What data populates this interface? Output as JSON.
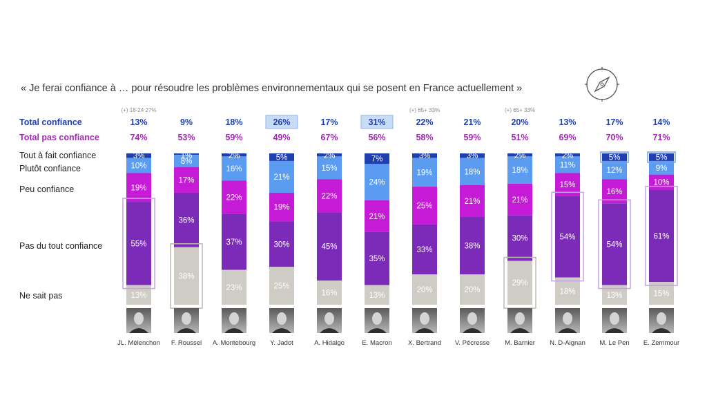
{
  "title": "« Je ferai confiance à … pour résoudre les problèmes environnementaux qui se posent en France actuellement »",
  "row_labels": {
    "total_confiance": "Total confiance",
    "total_pas_confiance": "Total pas confiance",
    "tout_a_fait": "Tout  à fait confiance",
    "plutot": "Plutôt confiance",
    "peu": "Peu confiance",
    "pas_du_tout": "Pas du tout confiance",
    "nsp": "Ne sait pas"
  },
  "colors": {
    "tout_a_fait": "#1f3fae",
    "plutot": "#5b9bf0",
    "peu": "#c51ad6",
    "pas_du_tout": "#7b2bb8",
    "nsp": "#cfcbc5",
    "highlight_total": "#c9dcf5",
    "highlight_outline": "#c8a0e8"
  },
  "chart_data": {
    "type": "bar",
    "stacked": true,
    "categories": [
      "JL. Mélenchon",
      "F. Roussel",
      "A. Montebourg",
      "Y. Jadot",
      "A. Hidalgo",
      "E. Macron",
      "X. Bertrand",
      "V. Pécresse",
      "M. Barnier",
      "N. D-Aignan",
      "M. Le Pen",
      "E. Zemmour"
    ],
    "series": [
      {
        "name": "Tout  à fait confiance",
        "values": [
          3,
          1,
          2,
          5,
          2,
          7,
          3,
          3,
          2,
          2,
          5,
          5
        ]
      },
      {
        "name": "Plutôt confiance",
        "values": [
          10,
          8,
          16,
          21,
          15,
          24,
          19,
          18,
          18,
          11,
          12,
          9
        ]
      },
      {
        "name": "Peu confiance",
        "values": [
          19,
          17,
          22,
          19,
          22,
          21,
          25,
          21,
          21,
          15,
          16,
          10
        ]
      },
      {
        "name": "Pas du tout confiance",
        "values": [
          55,
          36,
          37,
          30,
          45,
          35,
          33,
          38,
          30,
          54,
          54,
          61
        ]
      },
      {
        "name": "Ne sait pas",
        "values": [
          13,
          38,
          23,
          25,
          16,
          13,
          20,
          20,
          29,
          18,
          13,
          15
        ]
      }
    ],
    "total_confiance": [
      "13%",
      "9%",
      "18%",
      "26%",
      "17%",
      "31%",
      "22%",
      "21%",
      "20%",
      "13%",
      "17%",
      "14%"
    ],
    "total_pas_confiance": [
      "74%",
      "53%",
      "59%",
      "49%",
      "67%",
      "56%",
      "58%",
      "59%",
      "51%",
      "69%",
      "70%",
      "71%"
    ],
    "notes": [
      "(+) 18-24 27%",
      "",
      "",
      "",
      "",
      "",
      "(+) 65+ 33%",
      "",
      "(+) 65+ 33%",
      "",
      "",
      ""
    ],
    "highlight_total_confiance": [
      3,
      5
    ],
    "highlight_tout_a_fait": [
      10,
      11
    ],
    "highlight_pas_du_tout": [
      0,
      9,
      10,
      11
    ],
    "highlight_nsp": [
      1,
      8
    ]
  }
}
